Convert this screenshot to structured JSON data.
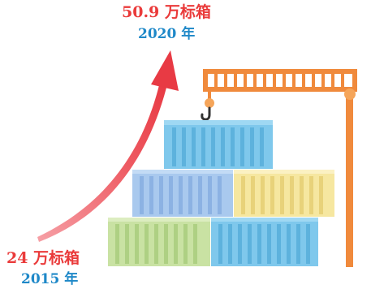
{
  "start": {
    "value": "24 万标箱",
    "year": "2015 年"
  },
  "end": {
    "value": "50.9 万标箱",
    "year": "2020 年"
  },
  "colors": {
    "value_text": "#ea3b3b",
    "year_text": "#1e88c8",
    "arrow": "#ec4a50",
    "crane": "#f08a3c",
    "container_blue": "#7fc8ec",
    "container_lightblue": "#a9c9ee",
    "container_yellow": "#f6e7a0",
    "container_green": "#c9e2a3"
  },
  "icons": [
    "growth-arrow-icon",
    "crane-icon",
    "crane-hook-icon",
    "shipping-container-icon"
  ]
}
